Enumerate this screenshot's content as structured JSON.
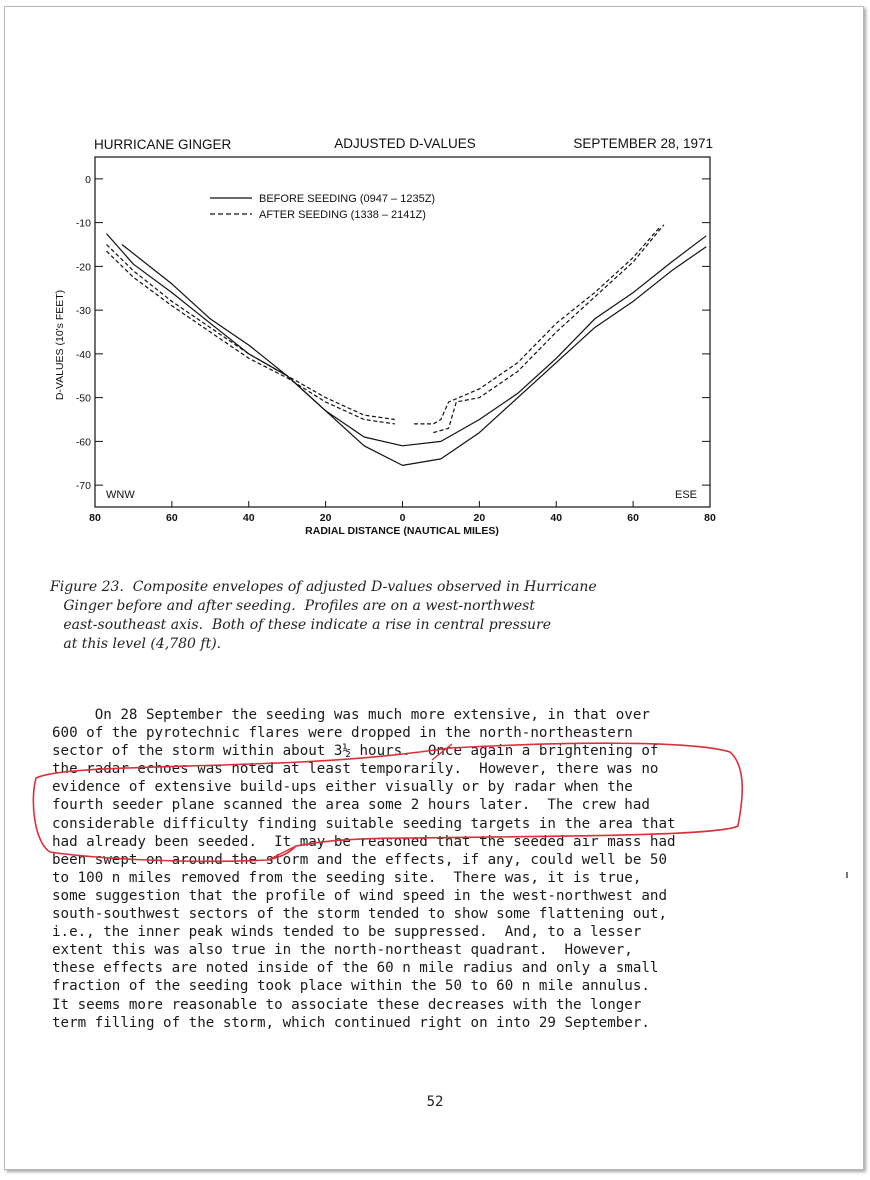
{
  "chart_data": {
    "type": "line",
    "title_left": "HURRICANE  GINGER",
    "title_center": "ADJUSTED D-VALUES",
    "title_right": "SEPTEMBER  28, 1971",
    "xlabel": "RADIAL  DISTANCE (NAUTICAL  MILES)",
    "ylabel": "D-VALUES (10's FEET)",
    "x_ticks": [
      "80",
      "60",
      "40",
      "20",
      "0",
      "20",
      "40",
      "60",
      "80"
    ],
    "y_ticks": [
      "0",
      "-10",
      "-20",
      "-30",
      "-40",
      "-50",
      "-60",
      "-70"
    ],
    "xlim": [
      -80,
      80
    ],
    "ylim": [
      -75,
      5
    ],
    "grid": false,
    "legend_position": "top-left",
    "left_label": "WNW",
    "right_label": "ESE",
    "series": [
      {
        "name": "BEFORE  SEEDING  (0947 – 1235Z)",
        "style": "solid",
        "x": [
          -77,
          -70,
          -60,
          -50,
          -40,
          -30,
          -20,
          -10,
          0,
          10,
          20,
          30,
          40,
          50,
          60,
          70,
          79
        ],
        "y": [
          -12.5,
          -19.5,
          -26,
          -33,
          -40,
          -45,
          -53,
          -59,
          -61,
          -60,
          -55,
          -49,
          -41,
          -32,
          -26,
          -19,
          -13
        ]
      },
      {
        "name": "BEFORE  SEEDING  (0947 – 1235Z) envelope 2",
        "style": "solid",
        "x": [
          -73,
          -60,
          -50,
          -40,
          -30,
          -20,
          -10,
          0,
          10,
          20,
          30,
          40,
          50,
          60,
          70,
          79
        ],
        "y": [
          -15,
          -24,
          -32,
          -38,
          -45,
          -53,
          -61,
          -65.5,
          -64,
          -58,
          -50,
          -42,
          -34,
          -28,
          -21,
          -15.5
        ]
      },
      {
        "name": "AFTER  SEEDING  (1338 – 2141Z)",
        "style": "dashed",
        "x": [
          -77,
          -70,
          -60,
          -50,
          -40,
          -30,
          -20,
          -10,
          -2
        ],
        "y": [
          -15,
          -21,
          -28,
          -34,
          -40,
          -45,
          -50,
          -54,
          -55
        ]
      },
      {
        "name": "AFTER  SEEDING  (1338 – 2141Z) envelope 2",
        "style": "dashed",
        "x": [
          -77,
          -70,
          -60,
          -50,
          -40,
          -30,
          -20,
          -10,
          -2
        ],
        "y": [
          -16.5,
          -22.5,
          -29,
          -35,
          -41,
          -45.5,
          -51,
          -55,
          -56
        ]
      },
      {
        "name": "AFTER  SEEDING  (1338 – 2141Z) envelope 3",
        "style": "dashed",
        "x": [
          3,
          8,
          10,
          12,
          20,
          30,
          40,
          50,
          60,
          67
        ],
        "y": [
          -56,
          -56,
          -55,
          -51,
          -48,
          -42,
          -33,
          -26,
          -18,
          -11
        ]
      },
      {
        "name": "AFTER  SEEDING  (1338 – 2141Z) envelope 4",
        "style": "dashed",
        "x": [
          8,
          12,
          14,
          20,
          30,
          40,
          50,
          60,
          68
        ],
        "y": [
          -58,
          -57,
          -51,
          -50,
          -44,
          -35,
          -27,
          -19,
          -10.5
        ]
      }
    ]
  },
  "caption": {
    "lines": [
      "Figure 23.  Composite envelopes of adjusted D-values observed in Hurricane",
      "   Ginger before and after seeding.  Profiles are on a west-northwest",
      "   east-southeast axis.  Both of these indicate a rise in central pressure",
      "   at this level (4,780 ft)."
    ]
  },
  "body": {
    "lines": [
      "     On 28 September the seeding was much more extensive, in that over",
      "600 of the pyrotechnic flares were dropped in the north-northeastern",
      "sector of the storm within about 3½ hours.  Once again a brightening of",
      "the radar echoes was noted at least temporarily.  However, there was no",
      "evidence of extensive build-ups either visually or by radar when the",
      "fourth seeder plane scanned the area some 2 hours later.  The crew had",
      "considerable difficulty finding suitable seeding targets in the area that",
      "had already been seeded.  It may be reasoned that the seeded air mass had",
      "been swept on around the storm and the effects, if any, could well be 50",
      "to 100 n miles removed from the seeding site.  There was, it is true,",
      "some suggestion that the profile of wind speed in the west-northwest and",
      "south-southwest sectors of the storm tended to show some flattening out,",
      "i.e., the inner peak winds tended to be suppressed.  And, to a lesser",
      "extent this was also true in the north-northeast quadrant.  However,",
      "these effects are noted inside of the 60 n mile radius and only a small",
      "fraction of the seeding took place within the 50 to 60 n mile annulus.",
      "It seems more reasonable to associate these decreases with the longer",
      "term filling of the storm, which continued right on into 29 September."
    ]
  },
  "page_number": "52",
  "annotation_color": "#d9303c"
}
